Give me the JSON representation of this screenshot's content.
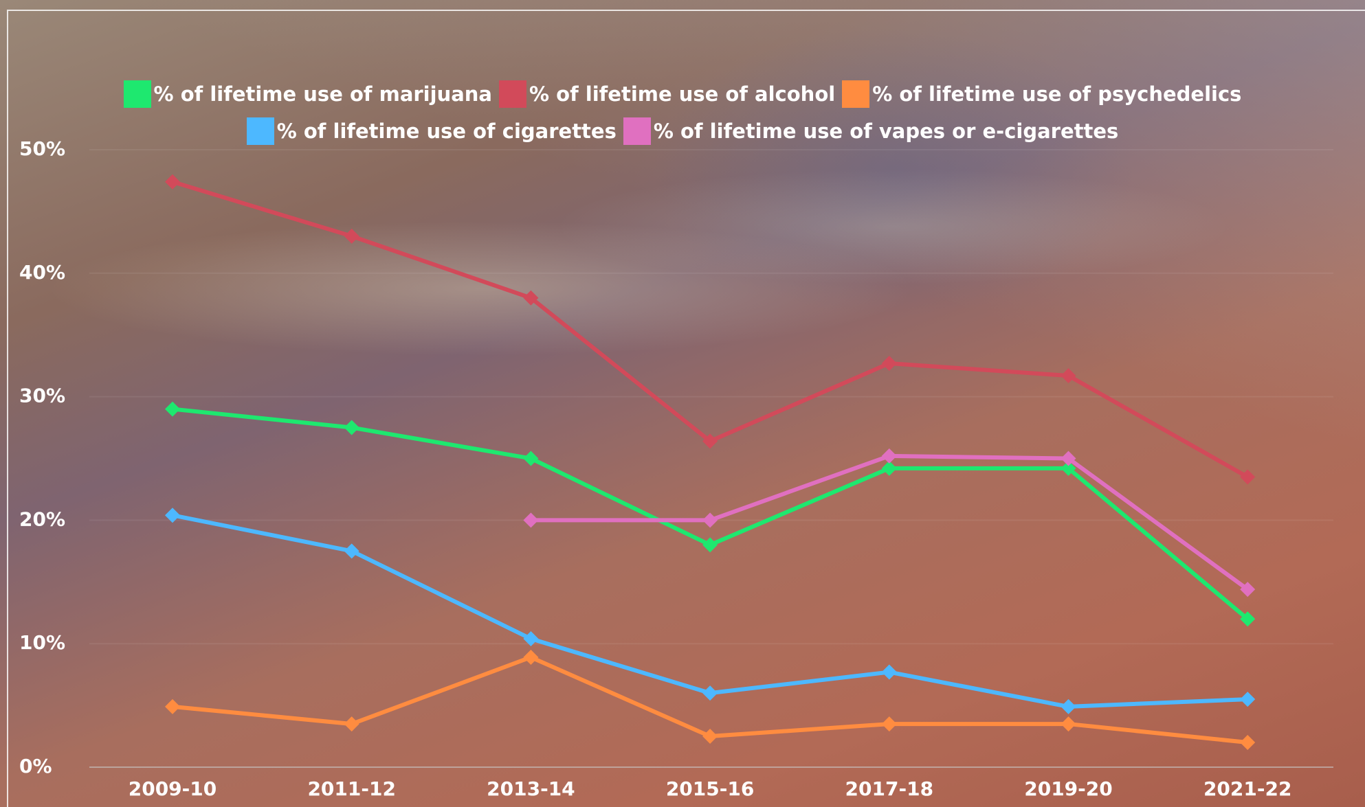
{
  "chart_data": {
    "type": "line",
    "categories": [
      "2009-10",
      "2011-12",
      "2013-14",
      "2015-16",
      "2017-18",
      "2019-20",
      "2021-22"
    ],
    "series": [
      {
        "name": "% of lifetime use of marijuana",
        "color": "#1ee86f",
        "values": [
          29,
          27.5,
          25,
          18,
          24.2,
          24.2,
          12
        ]
      },
      {
        "name": "% of lifetime use of alcohol",
        "color": "#d24a5a",
        "values": [
          47.4,
          43,
          38,
          26.4,
          32.7,
          31.7,
          23.5
        ]
      },
      {
        "name": "% of lifetime use of psychedelics",
        "color": "#ff8c40",
        "values": [
          4.9,
          3.5,
          8.9,
          2.5,
          3.5,
          3.5,
          2
        ]
      },
      {
        "name": "% of lifetime use of cigarettes",
        "color": "#4db8ff",
        "values": [
          20.4,
          17.5,
          10.4,
          6,
          7.7,
          4.9,
          5.5
        ]
      },
      {
        "name": "% of lifetime use of vapes or e-cigarettes",
        "color": "#e070c0",
        "values": [
          null,
          null,
          20,
          20,
          25.2,
          25,
          14.4
        ]
      }
    ],
    "ylim": [
      0,
      50
    ],
    "yticks": [
      {
        "value": 0,
        "label": "0%"
      },
      {
        "value": 10,
        "label": "10%"
      },
      {
        "value": 20,
        "label": "20%"
      },
      {
        "value": 30,
        "label": "30%"
      },
      {
        "value": 40,
        "label": "40%"
      },
      {
        "value": 50,
        "label": "50%"
      }
    ]
  }
}
